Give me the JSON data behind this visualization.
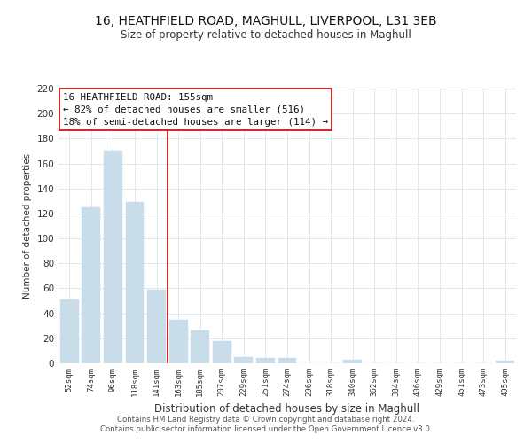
{
  "title_line1": "16, HEATHFIELD ROAD, MAGHULL, LIVERPOOL, L31 3EB",
  "title_line2": "Size of property relative to detached houses in Maghull",
  "xlabel": "Distribution of detached houses by size in Maghull",
  "ylabel": "Number of detached properties",
  "bar_labels": [
    "52sqm",
    "74sqm",
    "96sqm",
    "118sqm",
    "141sqm",
    "163sqm",
    "185sqm",
    "207sqm",
    "229sqm",
    "251sqm",
    "274sqm",
    "296sqm",
    "318sqm",
    "340sqm",
    "362sqm",
    "384sqm",
    "406sqm",
    "429sqm",
    "451sqm",
    "473sqm",
    "495sqm"
  ],
  "bar_heights": [
    51,
    125,
    170,
    129,
    59,
    35,
    26,
    18,
    5,
    4,
    4,
    0,
    0,
    3,
    0,
    0,
    0,
    0,
    0,
    0,
    2
  ],
  "bar_color": "#c8dcea",
  "bar_edge_color": "#c8dcea",
  "vline_x_idx": 4.5,
  "vline_color": "#cc0000",
  "annotation_line1": "16 HEATHFIELD ROAD: 155sqm",
  "annotation_line2": "← 82% of detached houses are smaller (516)",
  "annotation_line3": "18% of semi-detached houses are larger (114) →",
  "annotation_box_color": "#ffffff",
  "annotation_box_edge": "#cc0000",
  "ylim": [
    0,
    220
  ],
  "yticks": [
    0,
    20,
    40,
    60,
    80,
    100,
    120,
    140,
    160,
    180,
    200,
    220
  ],
  "background_color": "#ffffff",
  "grid_color": "#dce8f0",
  "footer_line1": "Contains HM Land Registry data © Crown copyright and database right 2024.",
  "footer_line2": "Contains public sector information licensed under the Open Government Licence v3.0."
}
